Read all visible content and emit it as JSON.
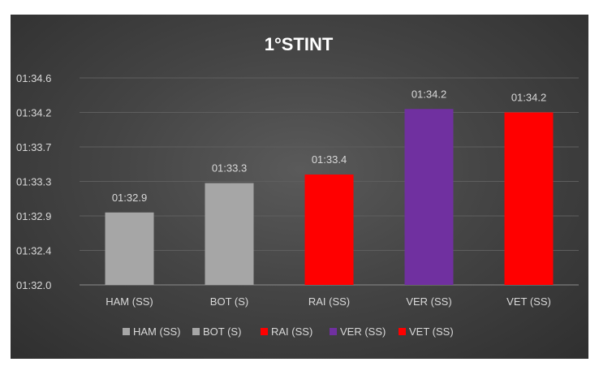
{
  "chart_data": {
    "type": "bar",
    "title": "1°STINT",
    "xlabel": "",
    "ylabel": "",
    "grid": true,
    "legend_position": "bottom",
    "ylim": [
      0,
      6
    ],
    "y_tick_labels": [
      "01:32.0",
      "01:32.4",
      "01:32.9",
      "01:33.3",
      "01:33.7",
      "01:34.2",
      "01:34.6"
    ],
    "categories": [
      "HAM (SS)",
      "BOT (S)",
      "RAI (SS)",
      "VER (SS)",
      "VET (SS)"
    ],
    "values": [
      2.1,
      2.95,
      3.2,
      5.1,
      5.0
    ],
    "data_labels": [
      "01:32.9",
      "01:33.3",
      "01:33.4",
      "01:34.2",
      "01:34.2"
    ],
    "colors": [
      "#a6a6a6",
      "#a6a6a6",
      "#ff0000",
      "#7030a0",
      "#ff0000"
    ],
    "legend": [
      "HAM (SS)",
      "BOT (S)",
      "RAI (SS)",
      "VER (SS)",
      "VET (SS)"
    ]
  }
}
